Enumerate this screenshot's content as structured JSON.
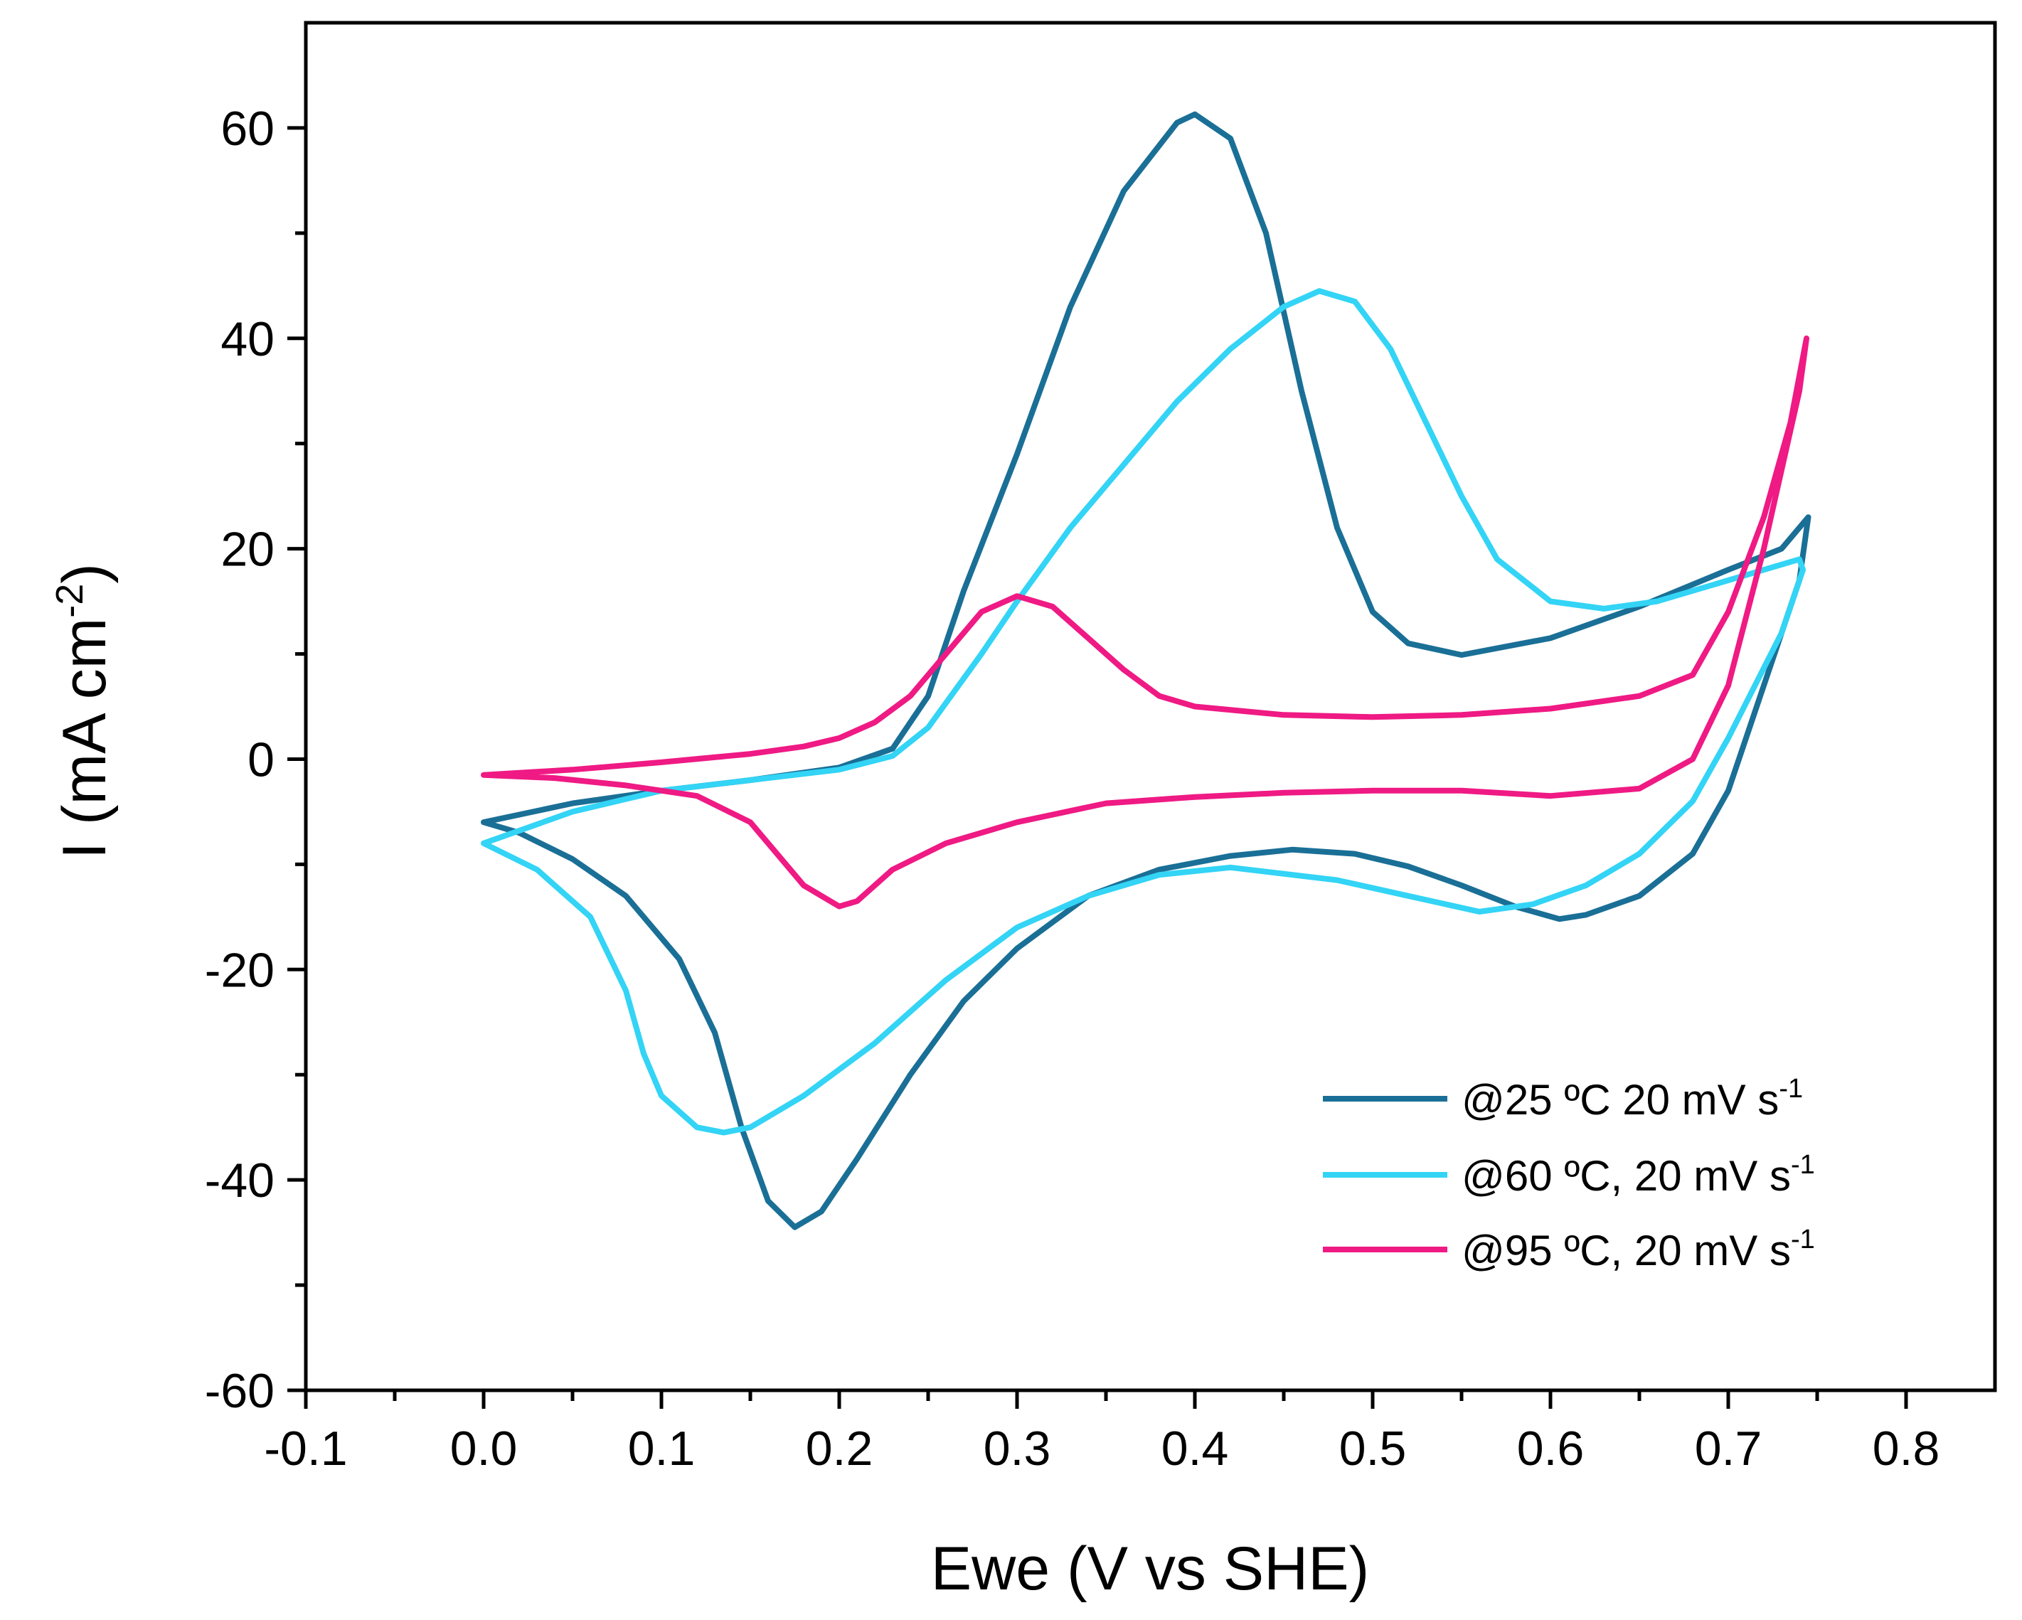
{
  "chart_data": {
    "type": "line",
    "xlabel": "Ewe (V vs SHE)",
    "ylabel_main": "I (mA cm",
    "ylabel_sup": "-2",
    "ylabel_close": ")",
    "xlim": [
      -0.1,
      0.85
    ],
    "ylim": [
      -60,
      70
    ],
    "xticks": [
      -0.1,
      0.0,
      0.1,
      0.2,
      0.3,
      0.4,
      0.5,
      0.6,
      0.7,
      0.8
    ],
    "xtick_labels": [
      "-0.1",
      "0.0",
      "0.1",
      "0.2",
      "0.3",
      "0.4",
      "0.5",
      "0.6",
      "0.7",
      "0.8"
    ],
    "yticks": [
      -60,
      -40,
      -20,
      0,
      20,
      40,
      60
    ],
    "ytick_labels": [
      "-60",
      "-40",
      "-20",
      "0",
      "20",
      "40",
      "60"
    ],
    "legend_position": "bottom-right",
    "series": [
      {
        "name": "@25 ºC 20 mV s",
        "name_sup": "-1",
        "color": "#1a6f96",
        "points": [
          [
            0.0,
            -6
          ],
          [
            0.05,
            -4.2
          ],
          [
            0.1,
            -3
          ],
          [
            0.15,
            -2
          ],
          [
            0.2,
            -0.8
          ],
          [
            0.23,
            1
          ],
          [
            0.25,
            6
          ],
          [
            0.27,
            16
          ],
          [
            0.3,
            29
          ],
          [
            0.33,
            43
          ],
          [
            0.36,
            54
          ],
          [
            0.39,
            60.5
          ],
          [
            0.4,
            61.3
          ],
          [
            0.42,
            59
          ],
          [
            0.44,
            50
          ],
          [
            0.46,
            35
          ],
          [
            0.48,
            22
          ],
          [
            0.5,
            14
          ],
          [
            0.52,
            11
          ],
          [
            0.55,
            9.9
          ],
          [
            0.6,
            11.5
          ],
          [
            0.65,
            14.5
          ],
          [
            0.7,
            18
          ],
          [
            0.73,
            20
          ],
          [
            0.745,
            23
          ],
          [
            0.74,
            17
          ],
          [
            0.72,
            7
          ],
          [
            0.7,
            -3
          ],
          [
            0.68,
            -9
          ],
          [
            0.65,
            -13
          ],
          [
            0.62,
            -14.8
          ],
          [
            0.605,
            -15.2
          ],
          [
            0.58,
            -14
          ],
          [
            0.55,
            -12
          ],
          [
            0.52,
            -10.2
          ],
          [
            0.49,
            -9
          ],
          [
            0.455,
            -8.6
          ],
          [
            0.42,
            -9.2
          ],
          [
            0.38,
            -10.5
          ],
          [
            0.34,
            -13
          ],
          [
            0.3,
            -18
          ],
          [
            0.27,
            -23
          ],
          [
            0.24,
            -30
          ],
          [
            0.21,
            -38
          ],
          [
            0.19,
            -43
          ],
          [
            0.175,
            -44.5
          ],
          [
            0.16,
            -42
          ],
          [
            0.145,
            -35
          ],
          [
            0.13,
            -26
          ],
          [
            0.11,
            -19
          ],
          [
            0.08,
            -13
          ],
          [
            0.05,
            -9.5
          ],
          [
            0.02,
            -7
          ],
          [
            0.0,
            -6
          ]
        ]
      },
      {
        "name": "@60 ºC, 20 mV s",
        "name_sup": "-1",
        "color": "#33d4f5",
        "points": [
          [
            0.0,
            -8
          ],
          [
            0.05,
            -5
          ],
          [
            0.1,
            -3
          ],
          [
            0.15,
            -2
          ],
          [
            0.2,
            -1
          ],
          [
            0.23,
            0.3
          ],
          [
            0.25,
            3
          ],
          [
            0.28,
            10
          ],
          [
            0.3,
            15
          ],
          [
            0.33,
            22
          ],
          [
            0.36,
            28
          ],
          [
            0.39,
            34
          ],
          [
            0.42,
            39
          ],
          [
            0.45,
            43
          ],
          [
            0.47,
            44.5
          ],
          [
            0.49,
            43.5
          ],
          [
            0.51,
            39
          ],
          [
            0.53,
            32
          ],
          [
            0.55,
            25
          ],
          [
            0.57,
            19
          ],
          [
            0.6,
            15
          ],
          [
            0.63,
            14.3
          ],
          [
            0.66,
            15
          ],
          [
            0.7,
            17
          ],
          [
            0.74,
            19
          ],
          [
            0.742,
            18
          ],
          [
            0.73,
            12
          ],
          [
            0.7,
            2
          ],
          [
            0.68,
            -4
          ],
          [
            0.65,
            -9
          ],
          [
            0.62,
            -12
          ],
          [
            0.59,
            -13.8
          ],
          [
            0.56,
            -14.5
          ],
          [
            0.52,
            -13
          ],
          [
            0.48,
            -11.5
          ],
          [
            0.42,
            -10.3
          ],
          [
            0.38,
            -11
          ],
          [
            0.34,
            -13
          ],
          [
            0.3,
            -16
          ],
          [
            0.26,
            -21
          ],
          [
            0.22,
            -27
          ],
          [
            0.18,
            -32
          ],
          [
            0.15,
            -35
          ],
          [
            0.135,
            -35.5
          ],
          [
            0.12,
            -35
          ],
          [
            0.1,
            -32
          ],
          [
            0.09,
            -28
          ],
          [
            0.08,
            -22
          ],
          [
            0.06,
            -15
          ],
          [
            0.03,
            -10.5
          ],
          [
            0.0,
            -8
          ]
        ]
      },
      {
        "name": "@95 ºC, 20 mV s",
        "name_sup": "-1",
        "color": "#ef1a84",
        "points": [
          [
            0.0,
            -1.5
          ],
          [
            0.05,
            -1
          ],
          [
            0.1,
            -0.3
          ],
          [
            0.15,
            0.5
          ],
          [
            0.18,
            1.2
          ],
          [
            0.2,
            2
          ],
          [
            0.22,
            3.5
          ],
          [
            0.24,
            6
          ],
          [
            0.26,
            10
          ],
          [
            0.28,
            14
          ],
          [
            0.3,
            15.5
          ],
          [
            0.32,
            14.5
          ],
          [
            0.34,
            11.5
          ],
          [
            0.36,
            8.5
          ],
          [
            0.38,
            6
          ],
          [
            0.4,
            5
          ],
          [
            0.45,
            4.2
          ],
          [
            0.5,
            4
          ],
          [
            0.55,
            4.2
          ],
          [
            0.6,
            4.8
          ],
          [
            0.65,
            6
          ],
          [
            0.68,
            8
          ],
          [
            0.7,
            14
          ],
          [
            0.72,
            23
          ],
          [
            0.735,
            32
          ],
          [
            0.744,
            40
          ],
          [
            0.74,
            35
          ],
          [
            0.72,
            20
          ],
          [
            0.7,
            7
          ],
          [
            0.68,
            0
          ],
          [
            0.65,
            -2.8
          ],
          [
            0.6,
            -3.5
          ],
          [
            0.55,
            -3
          ],
          [
            0.5,
            -3
          ],
          [
            0.45,
            -3.2
          ],
          [
            0.4,
            -3.6
          ],
          [
            0.35,
            -4.2
          ],
          [
            0.3,
            -6
          ],
          [
            0.26,
            -8
          ],
          [
            0.23,
            -10.5
          ],
          [
            0.21,
            -13.5
          ],
          [
            0.2,
            -14
          ],
          [
            0.18,
            -12
          ],
          [
            0.15,
            -6
          ],
          [
            0.12,
            -3.5
          ],
          [
            0.08,
            -2.5
          ],
          [
            0.04,
            -1.8
          ],
          [
            0.0,
            -1.5
          ]
        ]
      }
    ]
  }
}
